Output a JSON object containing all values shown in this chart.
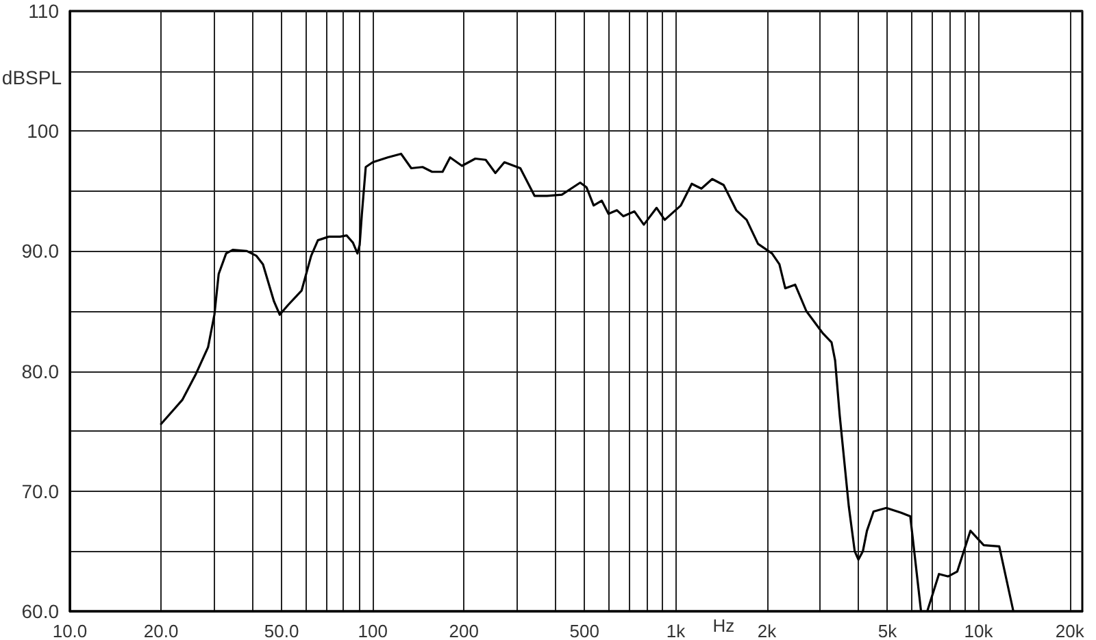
{
  "chart_data": {
    "type": "line",
    "xlabel": "Hz",
    "ylabel": "dBSPL",
    "log": "x",
    "grid": true,
    "marker": "none",
    "line_style": "solid",
    "xlim": [
      10,
      22000
    ],
    "ylim": [
      60,
      110
    ],
    "xticks": [
      {
        "value": 10,
        "label": "10.0"
      },
      {
        "value": 20,
        "label": "20.0"
      },
      {
        "value": 30,
        "label": null
      },
      {
        "value": 40,
        "label": null
      },
      {
        "value": 50,
        "label": "50.0"
      },
      {
        "value": 60,
        "label": null
      },
      {
        "value": 70,
        "label": null
      },
      {
        "value": 80,
        "label": null
      },
      {
        "value": 90,
        "label": null
      },
      100,
      200,
      {
        "value": 300,
        "label": null
      },
      {
        "value": 400,
        "label": null
      },
      500,
      {
        "value": 600,
        "label": null
      },
      {
        "value": 700,
        "label": null
      },
      {
        "value": 800,
        "label": null
      },
      {
        "value": 900,
        "label": null
      },
      {
        "value": 1000,
        "label": "1k"
      },
      {
        "value": 2000,
        "label": "2k"
      },
      {
        "value": 3000,
        "label": null
      },
      {
        "value": 4000,
        "label": null
      },
      {
        "value": 5000,
        "label": "5k"
      },
      {
        "value": 6000,
        "label": null
      },
      {
        "value": 7000,
        "label": null
      },
      {
        "value": 8000,
        "label": null
      },
      {
        "value": 9000,
        "label": null
      },
      {
        "value": 10000,
        "label": "10k"
      },
      {
        "value": 20000,
        "label": "20k"
      }
    ],
    "yticks": [
      {
        "value": 60,
        "label": "60.0"
      },
      {
        "value": 65,
        "label": null
      },
      {
        "value": 70,
        "label": "70.0"
      },
      {
        "value": 75,
        "label": null
      },
      {
        "value": 80,
        "label": "80.0"
      },
      {
        "value": 85,
        "label": null
      },
      {
        "value": 90,
        "label": "90.0"
      },
      {
        "value": 95,
        "label": null
      },
      100,
      {
        "value": 105,
        "label": null
      },
      110
    ],
    "series": [
      {
        "color": "#000000",
        "x": [
          20,
          23.5,
          26,
          28.6,
          30,
          31,
          32.8,
          34.5,
          38.4,
          41.3,
          43.4,
          47.2,
          49.3,
          52.5,
          58.2,
          62.6,
          65.9,
          71.6,
          78,
          82,
          86,
          88,
          89,
          90.5,
          92,
          94.8,
          100,
          112,
          124,
          134,
          146,
          157,
          170,
          180,
          197,
          218,
          236,
          254,
          272,
          307,
          342,
          376,
          421,
          484,
          508,
          536,
          570,
          600,
          640,
          672,
          731,
          785,
          865,
          920,
          1040,
          1130,
          1216,
          1320,
          1440,
          1585,
          1715,
          1870,
          2080,
          2200,
          2300,
          2480,
          2700,
          3050,
          3270,
          3360,
          3480,
          3730,
          3900,
          4010,
          4150,
          4280,
          4500,
          4960,
          5550,
          5950,
          6450,
          6600,
          6790,
          7400,
          7940,
          8500,
          9400,
          10400,
          11700,
          13000
        ],
        "values": [
          75.6,
          77.6,
          79.7,
          82.0,
          84.7,
          88.1,
          89.8,
          90.1,
          90.0,
          89.6,
          88.9,
          85.8,
          84.7,
          85.5,
          86.7,
          89.6,
          90.9,
          91.2,
          91.2,
          91.3,
          90.7,
          90.1,
          89.8,
          90.5,
          93.0,
          97.0,
          97.4,
          97.8,
          98.1,
          96.9,
          97.0,
          96.6,
          96.6,
          97.8,
          97.1,
          97.7,
          97.6,
          96.5,
          97.4,
          96.9,
          94.6,
          94.6,
          94.7,
          95.7,
          95.3,
          93.8,
          94.2,
          93.1,
          93.4,
          92.9,
          93.3,
          92.2,
          93.6,
          92.6,
          93.8,
          95.6,
          95.2,
          96.0,
          95.5,
          93.4,
          92.6,
          90.6,
          89.8,
          88.9,
          86.9,
          87.2,
          85.0,
          83.2,
          82.4,
          80.9,
          76.3,
          68.7,
          65.0,
          64.3,
          65.0,
          66.7,
          68.3,
          68.6,
          68.2,
          67.9,
          60.1,
          null,
          60.1,
          63.1,
          62.9,
          63.3,
          66.7,
          65.5,
          65.4,
          60.1
        ]
      }
    ]
  }
}
